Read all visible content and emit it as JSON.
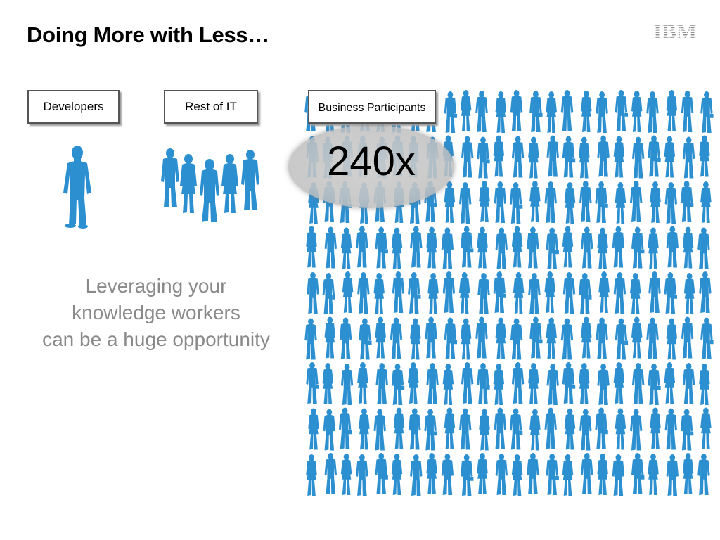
{
  "slide": {
    "title": "Doing More with Less…",
    "logo_text": "IBM"
  },
  "groups": [
    {
      "label": "Developers"
    },
    {
      "label": "Rest of IT"
    },
    {
      "label": "Business Participants"
    }
  ],
  "callout": {
    "value": "240x"
  },
  "message": {
    "lines": [
      "Leveraging your",
      "knowledge workers",
      "can be a huge opportunity"
    ]
  },
  "colors": {
    "figure_blue": "#2b8fd0",
    "title": "#000000",
    "message_gray": "#8a8a8a"
  }
}
